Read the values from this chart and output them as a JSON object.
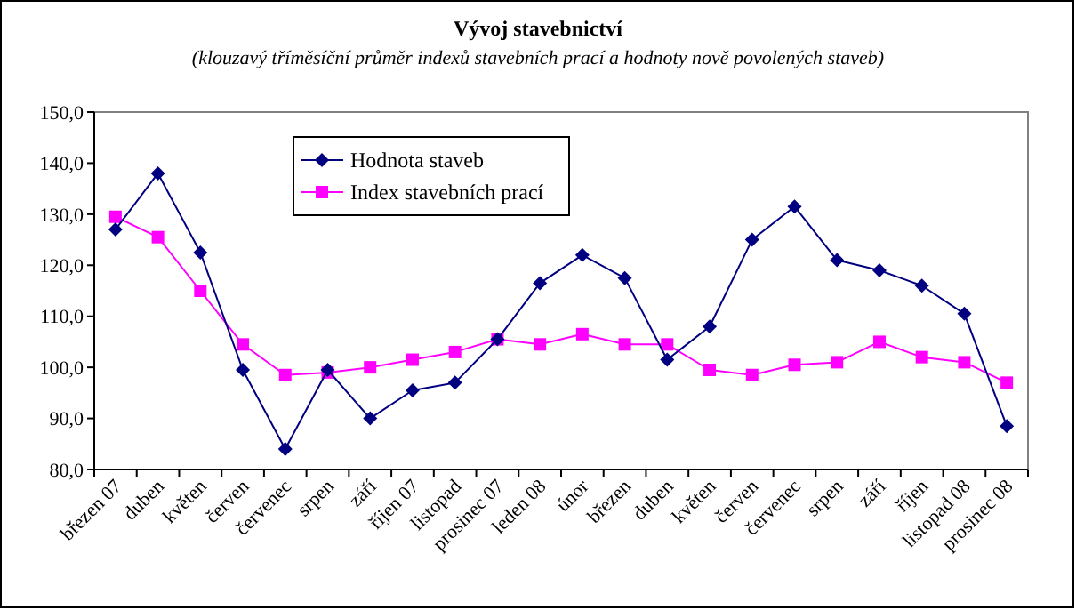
{
  "chart_data": {
    "type": "line",
    "title": "Vývoj stavebnictví",
    "subtitle": "(klouzavý tříměsíční průměr indexů stavebních prací a hodnoty nově povolených staveb)",
    "categories": [
      "březen 07",
      "duben",
      "květen",
      "červen",
      "červenec",
      "srpen",
      "září",
      "říjen 07",
      "listopad",
      "prosinec 07",
      "leden 08",
      "únor",
      "březen",
      "duben",
      "květen",
      "červen",
      "červenec",
      "srpen",
      "září",
      "říjen",
      "listopad 08",
      "prosinec 08"
    ],
    "series": [
      {
        "name": "Hodnota staveb",
        "color": "#000080",
        "marker": "diamond",
        "values": [
          127,
          138,
          122.5,
          99.5,
          84,
          99.5,
          90,
          95.5,
          97,
          105.5,
          116.5,
          122,
          117.5,
          101.5,
          108,
          125,
          131.5,
          121,
          119,
          116,
          110.5,
          88.5
        ]
      },
      {
        "name": "Index stavebních prací",
        "color": "#ff00ff",
        "marker": "square",
        "values": [
          129.5,
          125.5,
          115,
          104.5,
          98.5,
          99,
          100,
          101.5,
          103,
          105.5,
          104.5,
          106.5,
          104.5,
          104.5,
          99.5,
          98.5,
          100.5,
          101,
          105,
          102,
          101,
          97
        ]
      }
    ],
    "ylim": [
      80,
      150
    ],
    "yticks": [
      {
        "value": 80,
        "label": "80,0"
      },
      {
        "value": 90,
        "label": "90,0"
      },
      {
        "value": 100,
        "label": "100,0"
      },
      {
        "value": 110,
        "label": "110,0"
      },
      {
        "value": 120,
        "label": "120,0"
      },
      {
        "value": 130,
        "label": "130,0"
      },
      {
        "value": 140,
        "label": "140,0"
      },
      {
        "value": 150,
        "label": "150,0"
      }
    ],
    "grid": false,
    "legend": "top left",
    "line_style": "solid"
  }
}
